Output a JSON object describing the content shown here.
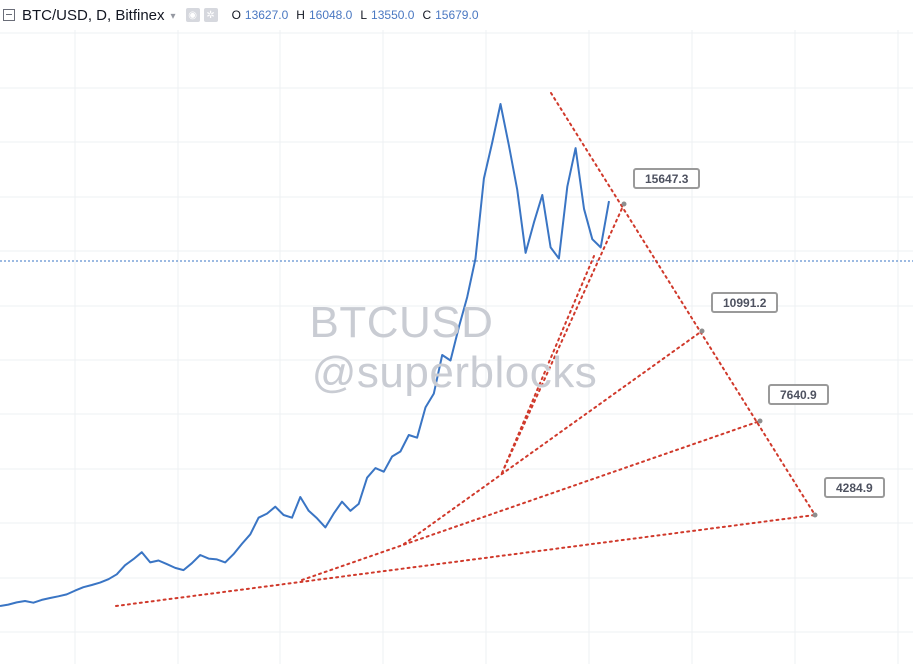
{
  "header": {
    "symbol": "BTC/USD, D, Bitfinex",
    "caret": "▾",
    "icons": [
      "settings-icon",
      "gear-icon"
    ],
    "ohlc": {
      "o_label": "O",
      "o_value": "13627.0",
      "h_label": "H",
      "h_value": "16048.0",
      "l_label": "L",
      "l_value": "13550.0",
      "c_label": "C",
      "c_value": "15679.0"
    }
  },
  "watermark": {
    "line1": "BTCUSD",
    "line2": "@superblocks"
  },
  "fan_labels": [
    "15647.3",
    "10991.2",
    "7640.9",
    "4284.9"
  ],
  "colors": {
    "price_line": "#3a75c4",
    "fan_lines": "#d0392b",
    "last_price_line": "#3a75c4",
    "grid": "#eef0f3"
  },
  "chart_data": {
    "type": "line",
    "title": "BTC/USD, D, Bitfinex",
    "series": [
      {
        "name": "BTC/USD",
        "values": [
          1000,
          1050,
          1130,
          1180,
          1120,
          1220,
          1290,
          1350,
          1420,
          1560,
          1680,
          1760,
          1850,
          1970,
          2150,
          2480,
          2700,
          2950,
          2580,
          2650,
          2520,
          2380,
          2300,
          2550,
          2850,
          2720,
          2690,
          2580,
          2880,
          3250,
          3600,
          4200,
          4350,
          4600,
          4300,
          4200,
          4950,
          4450,
          4180,
          3850,
          4350,
          4780,
          4450,
          4700,
          5650,
          6000,
          5870,
          6420,
          6600,
          7200,
          7100,
          8200,
          8700,
          10100,
          9900,
          11100,
          12200,
          13600,
          16500,
          17800,
          19200,
          17700,
          16100,
          13800,
          14900,
          15900,
          14000,
          13600,
          16200,
          17600,
          15400,
          14300,
          14000,
          15679
        ]
      }
    ],
    "x_range": [
      "2017-03",
      "2018-01"
    ],
    "fan_levels": [
      15647.3,
      10991.2,
      7640.9,
      4284.9
    ],
    "last_price": 15679.0,
    "grid": true
  }
}
